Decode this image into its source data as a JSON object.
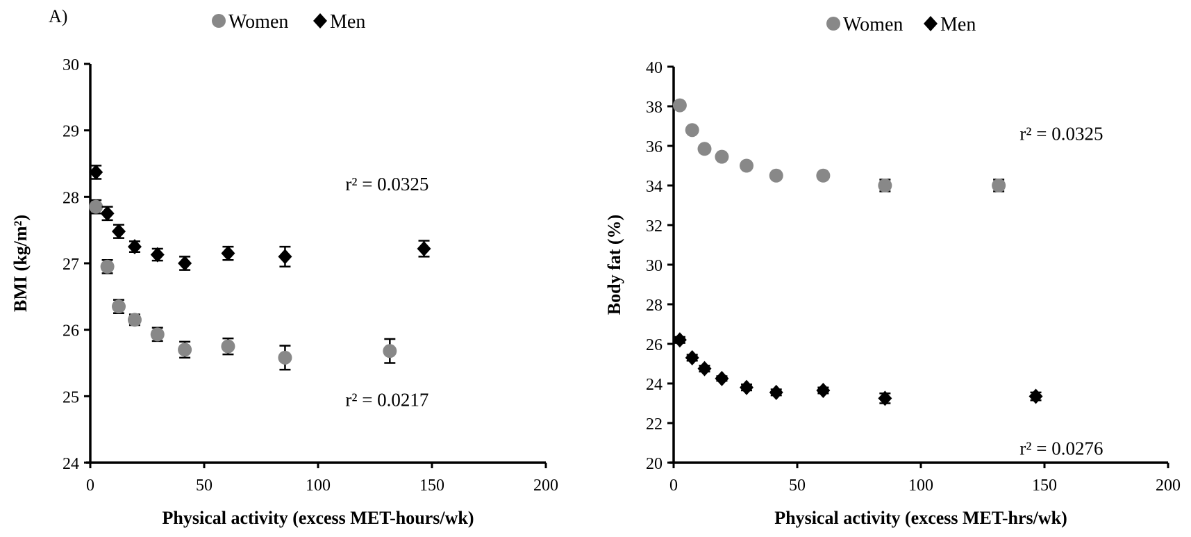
{
  "chart_data": [
    {
      "type": "scatter",
      "panel_label": "A)",
      "xlabel": "Physical activity (excess MET-hours/wk)",
      "ylabel": "BMI (kg/m²)",
      "xlim": [
        0,
        200
      ],
      "ylim": [
        24,
        30
      ],
      "x_ticks": [
        "0",
        "50",
        "100",
        "150",
        "200"
      ],
      "y_ticks": [
        "24",
        "25",
        "26",
        "27",
        "28",
        "29",
        "30"
      ],
      "grid": false,
      "legend_placement": "top-center",
      "series": [
        {
          "name": "Women",
          "marker": "circle",
          "color": "#888888",
          "points": [
            {
              "x": 2.5,
              "y": 27.85,
              "err": 0.1
            },
            {
              "x": 7.5,
              "y": 26.95,
              "err": 0.1
            },
            {
              "x": 12.5,
              "y": 26.35,
              "err": 0.1
            },
            {
              "x": 19.5,
              "y": 26.15,
              "err": 0.08
            },
            {
              "x": 29.5,
              "y": 25.93,
              "err": 0.1
            },
            {
              "x": 41.5,
              "y": 25.7,
              "err": 0.12
            },
            {
              "x": 60.5,
              "y": 25.75,
              "err": 0.12
            },
            {
              "x": 85.5,
              "y": 25.58,
              "err": 0.18
            },
            {
              "x": 131.5,
              "y": 25.68,
              "err": 0.18
            }
          ]
        },
        {
          "name": "Men",
          "marker": "diamond",
          "color": "#000000",
          "points": [
            {
              "x": 2.5,
              "y": 28.37,
              "err": 0.1
            },
            {
              "x": 7.5,
              "y": 27.75,
              "err": 0.1
            },
            {
              "x": 12.5,
              "y": 27.48,
              "err": 0.1
            },
            {
              "x": 19.5,
              "y": 27.25,
              "err": 0.08
            },
            {
              "x": 29.5,
              "y": 27.13,
              "err": 0.09
            },
            {
              "x": 41.5,
              "y": 27.0,
              "err": 0.1
            },
            {
              "x": 60.5,
              "y": 27.15,
              "err": 0.1
            },
            {
              "x": 85.5,
              "y": 27.1,
              "err": 0.15
            },
            {
              "x": 146.5,
              "y": 27.22,
              "err": 0.12
            }
          ]
        }
      ],
      "annotations": [
        {
          "text": "r² = 0.0325",
          "x": 112,
          "y": 28.1
        },
        {
          "text": "r² = 0.0217",
          "x": 112,
          "y": 24.85
        }
      ]
    },
    {
      "type": "scatter",
      "panel_label": "",
      "xlabel": "Physical activity (excess MET-hrs/wk)",
      "ylabel": "Body fat (%)",
      "xlim": [
        0,
        200
      ],
      "ylim": [
        20,
        40
      ],
      "x_ticks": [
        "0",
        "50",
        "100",
        "150",
        "200"
      ],
      "y_ticks": [
        "20",
        "22",
        "24",
        "26",
        "28",
        "30",
        "32",
        "34",
        "36",
        "38",
        "40"
      ],
      "grid": false,
      "legend_placement": "top-center",
      "series": [
        {
          "name": "Women",
          "marker": "circle",
          "color": "#888888",
          "points": [
            {
              "x": 2.5,
              "y": 38.05,
              "err": 0.15
            },
            {
              "x": 7.5,
              "y": 36.8,
              "err": 0.15
            },
            {
              "x": 12.5,
              "y": 35.85,
              "err": 0.15
            },
            {
              "x": 19.5,
              "y": 35.45,
              "err": 0.12
            },
            {
              "x": 29.5,
              "y": 35.0,
              "err": 0.12
            },
            {
              "x": 41.5,
              "y": 34.5,
              "err": 0.15
            },
            {
              "x": 60.5,
              "y": 34.5,
              "err": 0.15
            },
            {
              "x": 85.5,
              "y": 34.0,
              "err": 0.3
            },
            {
              "x": 131.5,
              "y": 34.0,
              "err": 0.3
            }
          ]
        },
        {
          "name": "Men",
          "marker": "diamond",
          "color": "#000000",
          "points": [
            {
              "x": 2.5,
              "y": 26.2,
              "err": 0.15
            },
            {
              "x": 7.5,
              "y": 25.3,
              "err": 0.15
            },
            {
              "x": 12.5,
              "y": 24.75,
              "err": 0.15
            },
            {
              "x": 19.5,
              "y": 24.25,
              "err": 0.12
            },
            {
              "x": 29.5,
              "y": 23.8,
              "err": 0.15
            },
            {
              "x": 41.5,
              "y": 23.55,
              "err": 0.15
            },
            {
              "x": 60.5,
              "y": 23.65,
              "err": 0.15
            },
            {
              "x": 85.5,
              "y": 23.25,
              "err": 0.25
            },
            {
              "x": 146.5,
              "y": 23.35,
              "err": 0.2
            }
          ]
        }
      ],
      "annotations": [
        {
          "text": "r² = 0.0325",
          "x": 140,
          "y": 36.3
        },
        {
          "text": "r² = 0.0276",
          "x": 140,
          "y": 20.4
        }
      ]
    }
  ]
}
